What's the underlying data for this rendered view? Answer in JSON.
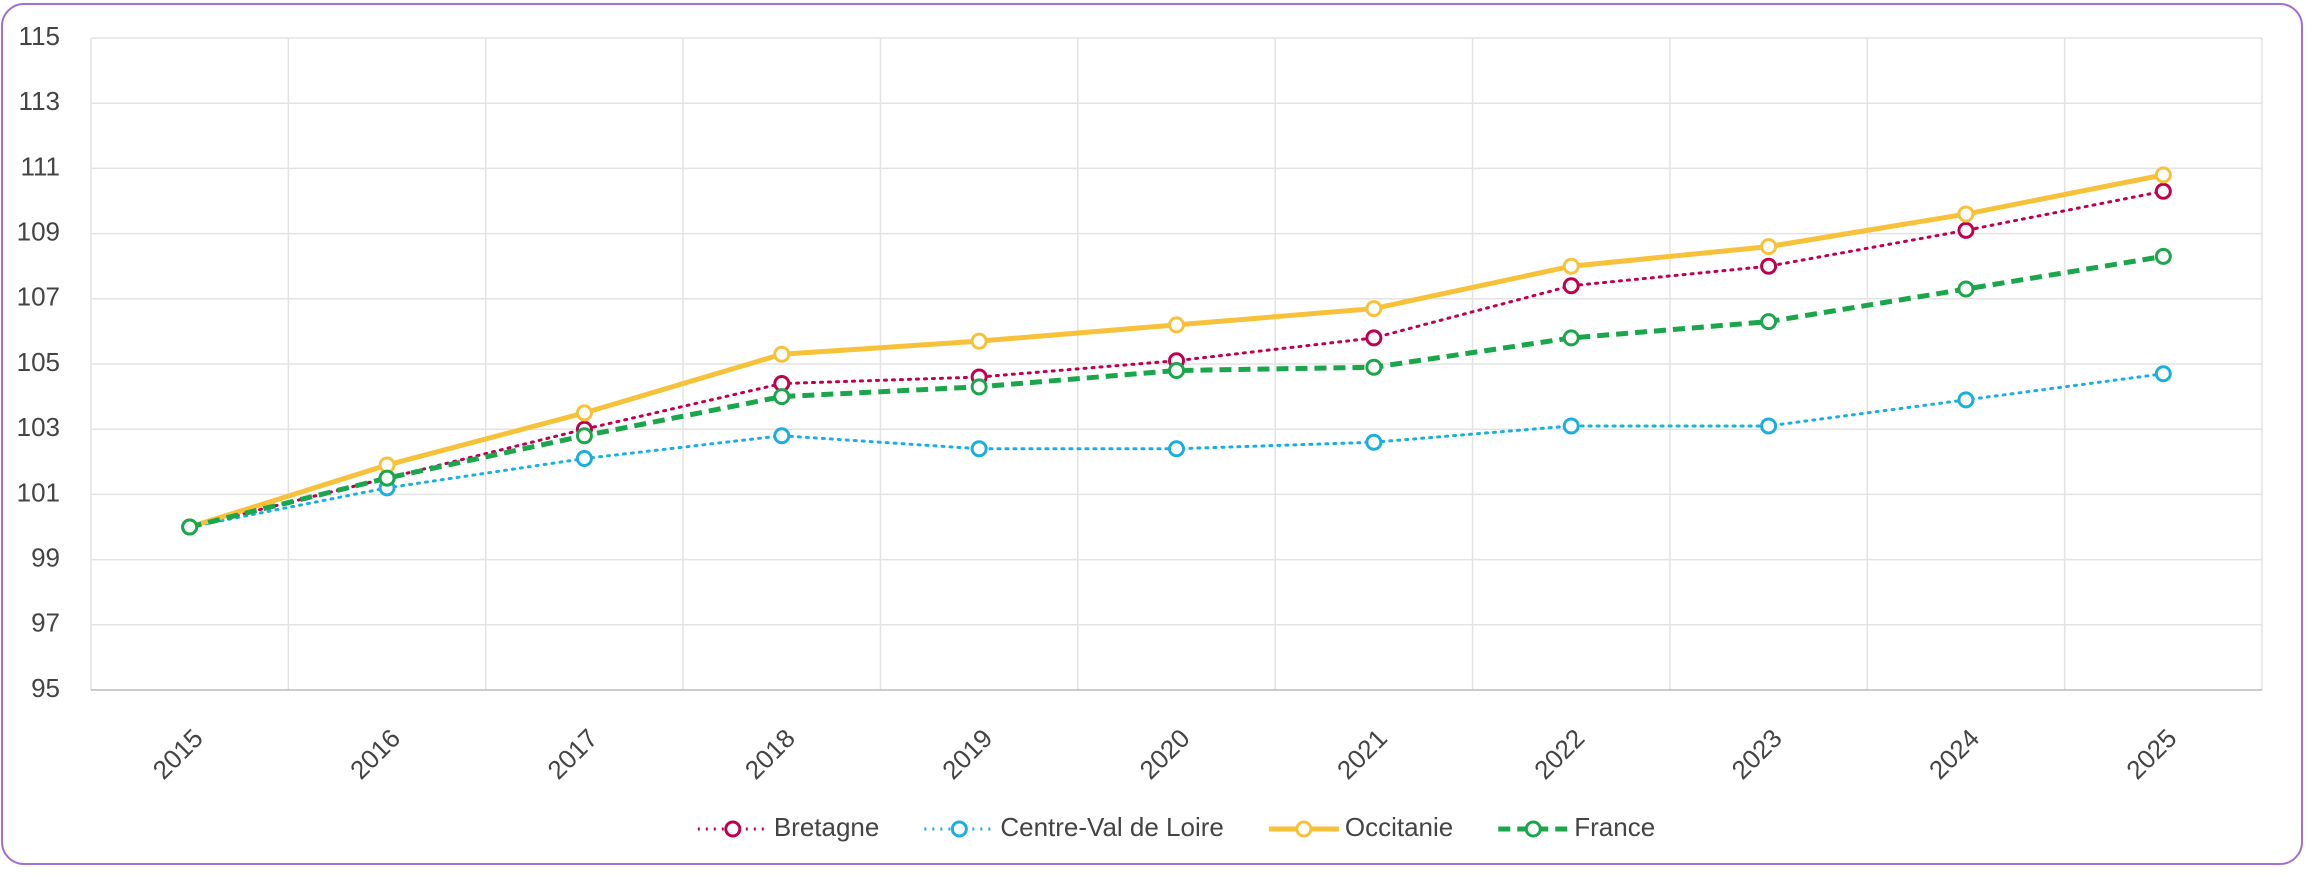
{
  "chart_data": {
    "type": "line",
    "categories": [
      "2015",
      "2016",
      "2017",
      "2018",
      "2019",
      "2020",
      "2021",
      "2022",
      "2023",
      "2024",
      "2025"
    ],
    "series": [
      {
        "name": "Bretagne",
        "color": "#c0004f",
        "dash": "dot",
        "values": [
          100,
          101.5,
          103.0,
          104.4,
          104.6,
          105.1,
          105.8,
          107.4,
          108.0,
          109.1,
          110.3
        ]
      },
      {
        "name": "Centre-Val de Loire",
        "color": "#1aafe0",
        "dash": "dot",
        "values": [
          100,
          101.2,
          102.1,
          102.8,
          102.4,
          102.4,
          102.6,
          103.1,
          103.1,
          103.9,
          104.7
        ]
      },
      {
        "name": "Occitanie",
        "color": "#f7c23a",
        "dash": "solid",
        "values": [
          100,
          101.9,
          103.5,
          105.3,
          105.7,
          106.2,
          106.7,
          108.0,
          108.6,
          109.6,
          110.8
        ]
      },
      {
        "name": "France",
        "color": "#1aa64a",
        "dash": "dash",
        "values": [
          100,
          101.5,
          102.8,
          104.0,
          104.3,
          104.8,
          104.9,
          105.8,
          106.3,
          107.3,
          108.3
        ]
      }
    ],
    "ylim": [
      95,
      115
    ],
    "yticks": [
      95,
      97,
      99,
      101,
      103,
      105,
      107,
      109,
      111,
      113,
      115
    ],
    "grid": true,
    "legend": "bottom"
  }
}
